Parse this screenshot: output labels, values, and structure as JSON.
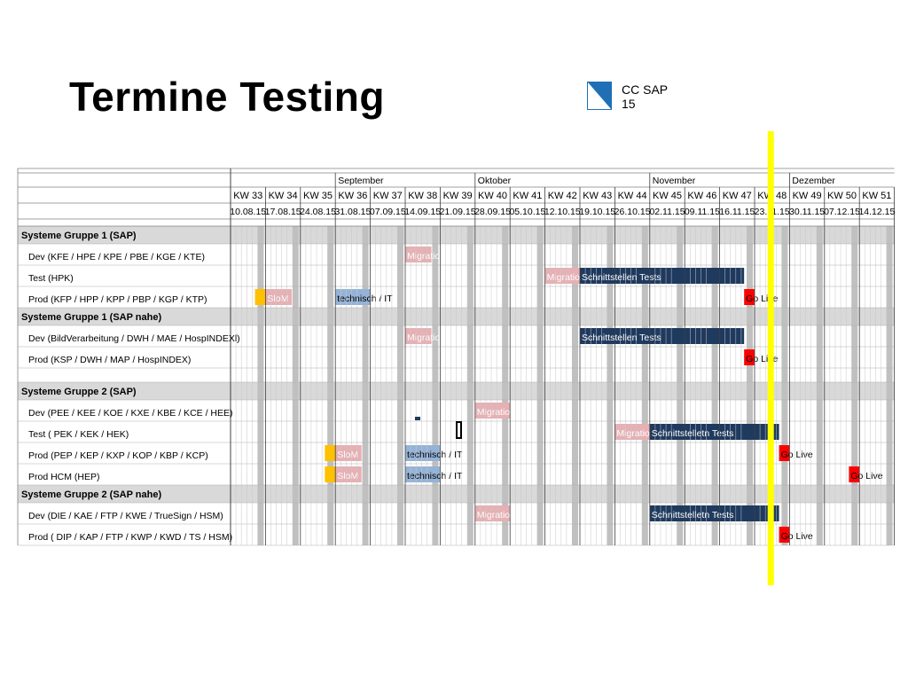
{
  "slide": {
    "title": "Termine Testing",
    "logo_text_line1": "CC SAP",
    "logo_text_line2": "15"
  },
  "months": [
    {
      "label": "September",
      "start_week": 3
    },
    {
      "label": "Oktober",
      "start_week": 7
    },
    {
      "label": "November",
      "start_week": 12
    },
    {
      "label": "Dezember",
      "start_week": 16
    }
  ],
  "weeks": [
    {
      "kw": "KW 33",
      "date": "10.08.15"
    },
    {
      "kw": "KW 34",
      "date": "17.08.15"
    },
    {
      "kw": "KW 35",
      "date": "24.08.15"
    },
    {
      "kw": "KW 36",
      "date": "31.08.15"
    },
    {
      "kw": "KW 37",
      "date": "07.09.15"
    },
    {
      "kw": "KW 38",
      "date": "14.09.15"
    },
    {
      "kw": "KW 39",
      "date": "21.09.15"
    },
    {
      "kw": "KW 40",
      "date": "28.09.15"
    },
    {
      "kw": "KW 41",
      "date": "05.10.15"
    },
    {
      "kw": "KW 42",
      "date": "12.10.15"
    },
    {
      "kw": "KW 43",
      "date": "19.10.15"
    },
    {
      "kw": "KW 44",
      "date": "26.10.15"
    },
    {
      "kw": "KW 45",
      "date": "02.11.15"
    },
    {
      "kw": "KW 46",
      "date": "09.11.15"
    },
    {
      "kw": "KW 47",
      "date": "16.11.15"
    },
    {
      "kw": "KW 48",
      "date": "23.11.15"
    },
    {
      "kw": "KW 49",
      "date": "30.11.15"
    },
    {
      "kw": "KW 50",
      "date": "07.12.15"
    },
    {
      "kw": "KW 51",
      "date": "14.12.15"
    }
  ],
  "current_week_marker_week": 48,
  "colors": {
    "group_header_bg": "#d9d9d9",
    "weekend_col": "#c0c0c0",
    "migration": "#e6b0b4",
    "schnittstellen": "#1f3a5f",
    "golive": "#ff0000",
    "slom": "#ffc000",
    "slom_pink": "#e6b0b4",
    "technisch": "#95b3d7",
    "marker": "#ffff00"
  },
  "rows": [
    {
      "type": "group",
      "label": "Systeme Gruppe 1 (SAP)"
    },
    {
      "type": "item",
      "label": "Dev  (KFE / HPE / KPE / PBE / KGE / KTE)",
      "bars": [
        {
          "kind": "migration",
          "text": "Migration",
          "start": 5,
          "len": 0.75
        }
      ]
    },
    {
      "type": "item",
      "label": "Test (HPK)",
      "bars": [
        {
          "kind": "migration",
          "text": "Migration",
          "start": 9,
          "len": 1
        },
        {
          "kind": "schnittstellen",
          "text": "Schnittstellen Tests",
          "start": 10,
          "len": 4.7
        }
      ]
    },
    {
      "type": "item",
      "label": "Prod (KFP / HPP / KPP / PBP / KGP / KTP)",
      "bars": [
        {
          "kind": "slom",
          "text": "",
          "start": 0.7,
          "len": 0.3
        },
        {
          "kind": "slom_pink",
          "text": "SloM",
          "start": 1,
          "len": 0.75
        },
        {
          "kind": "technisch",
          "text": "technisch / IT",
          "start": 3,
          "len": 1
        },
        {
          "kind": "golive",
          "text": "Go Live",
          "start": 14.7,
          "len": 0.3
        }
      ]
    },
    {
      "type": "group",
      "label": "Systeme Gruppe 1 (SAP nahe)"
    },
    {
      "type": "item",
      "label": "Dev  (BildVerarbeitung / DWH / MAE / HospINDEXl)",
      "bars": [
        {
          "kind": "migration",
          "text": "Migration",
          "start": 5,
          "len": 0.75
        },
        {
          "kind": "schnittstellen",
          "text": "Schnittstellen Tests",
          "start": 10,
          "len": 4.7
        }
      ]
    },
    {
      "type": "item",
      "label": "Prod (KSP / DWH / MAP / HospINDEX)",
      "bars": [
        {
          "kind": "golive",
          "text": "Go Live",
          "start": 14.7,
          "len": 0.3
        }
      ]
    },
    {
      "type": "spacer"
    },
    {
      "type": "group",
      "label": "Systeme Gruppe 2 (SAP)"
    },
    {
      "type": "item",
      "label": "Dev (PEE / KEE / KOE / KXE / KBE / KCE / HEE)",
      "bars": [
        {
          "kind": "migration",
          "text": "Migration",
          "start": 7,
          "len": 1
        }
      ]
    },
    {
      "type": "item",
      "label": "Test ( PEK / KEK / HEK)",
      "bars": [
        {
          "kind": "migration",
          "text": "Migration",
          "start": 11,
          "len": 1
        },
        {
          "kind": "schnittstellen",
          "text": "Schnittstelletn Tests",
          "start": 12,
          "len": 3.7
        }
      ]
    },
    {
      "type": "item",
      "label": "Prod (PEP / KEP / KXP / KOP / KBP / KCP)",
      "bars": [
        {
          "kind": "slom",
          "text": "",
          "start": 2.7,
          "len": 0.3
        },
        {
          "kind": "slom_pink",
          "text": "SloM",
          "start": 3,
          "len": 0.75
        },
        {
          "kind": "technisch",
          "text": "technisch / IT",
          "start": 5,
          "len": 1
        },
        {
          "kind": "golive",
          "text": "Go Live",
          "start": 15.7,
          "len": 0.3
        }
      ]
    },
    {
      "type": "item",
      "label": "Prod HCM (HEP)",
      "bars": [
        {
          "kind": "slom",
          "text": "",
          "start": 2.7,
          "len": 0.3
        },
        {
          "kind": "slom_pink",
          "text": "SloM",
          "start": 3,
          "len": 0.75
        },
        {
          "kind": "technisch",
          "text": "technisch / IT",
          "start": 5,
          "len": 1
        },
        {
          "kind": "golive",
          "text": "Go Live",
          "start": 17.7,
          "len": 0.3
        }
      ]
    },
    {
      "type": "group",
      "label": "Systeme Gruppe 2 (SAP nahe)"
    },
    {
      "type": "item",
      "label": "Dev  (DIE / KAE / FTP / KWE / TrueSign / HSM)",
      "bars": [
        {
          "kind": "migration",
          "text": "Migration",
          "start": 7,
          "len": 1
        },
        {
          "kind": "schnittstellen",
          "text": "Schnittstelletn Tests",
          "start": 12,
          "len": 3.7
        }
      ]
    },
    {
      "type": "item",
      "label": "Prod ( DIP / KAP / FTP / KWP  / KWD / TS / HSM)",
      "bars": [
        {
          "kind": "golive",
          "text": "Go Live",
          "start": 15.7,
          "len": 0.3
        }
      ]
    }
  ]
}
